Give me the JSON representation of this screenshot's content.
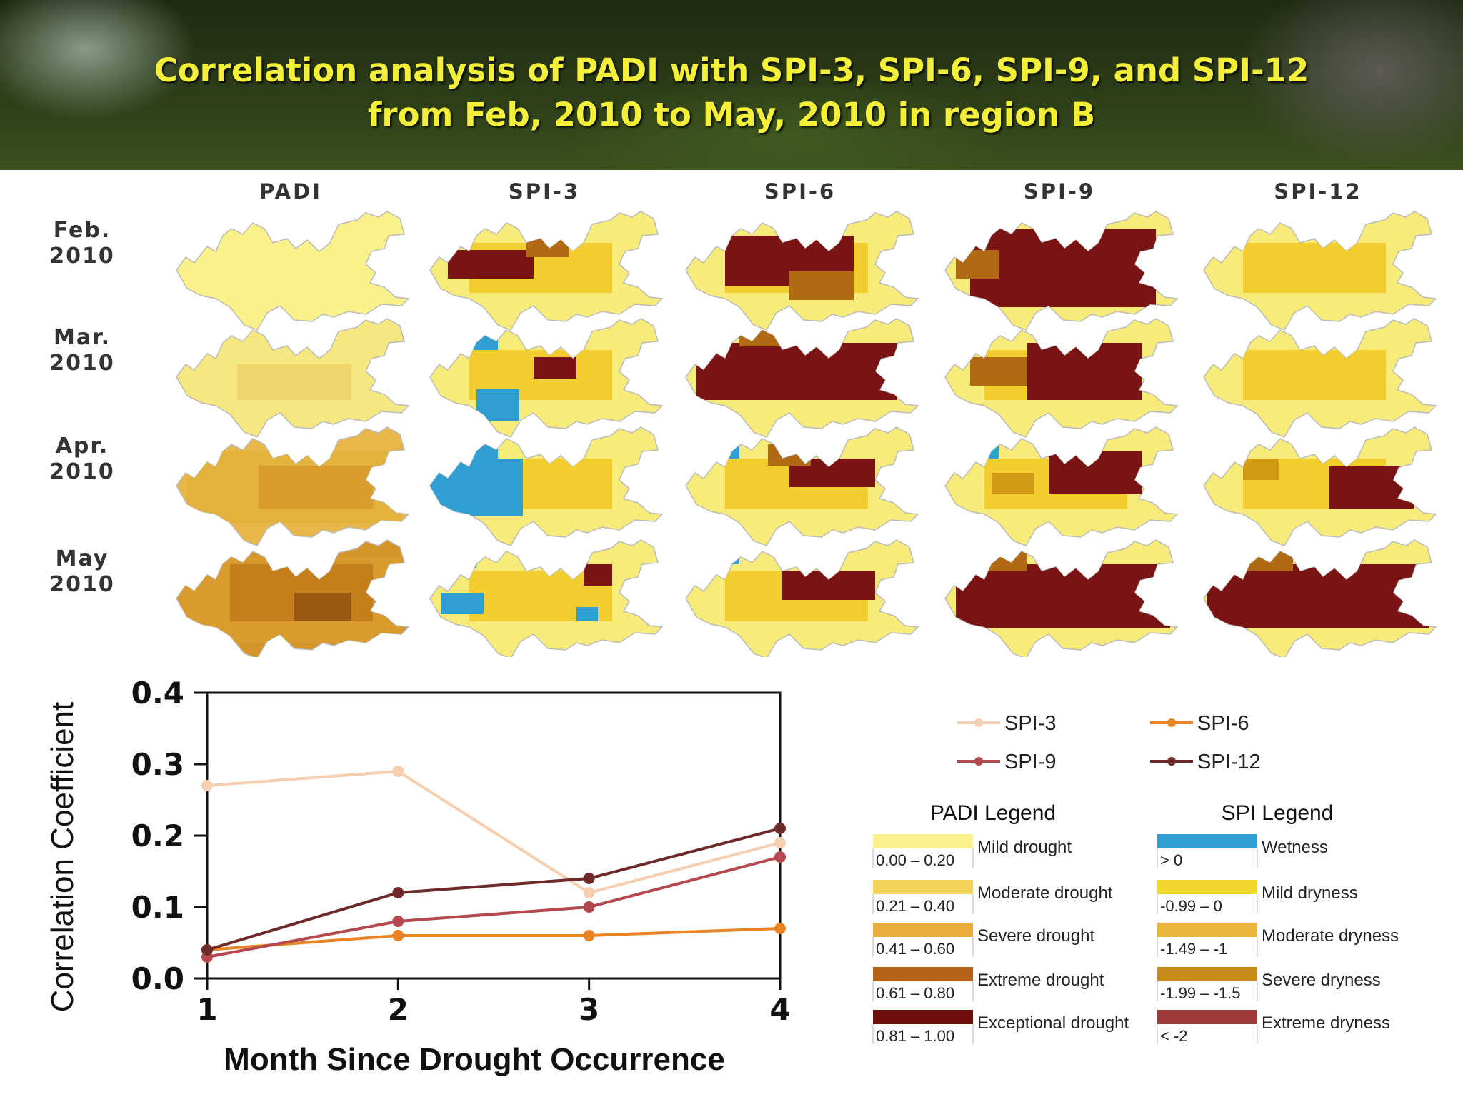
{
  "title": {
    "line1": "Correlation analysis of PADI with SPI-3, SPI-6, SPI-9, and SPI-12",
    "line2": "from Feb, 2010 to May, 2010 in region B"
  },
  "colors": {
    "title": "#f4ef38",
    "wet": "#2f9fd1",
    "mild": "#f7eb7a",
    "moderate": "#f2cd2e",
    "severe": "#d29a12",
    "extreme": "#b06a14",
    "exceptional": "#7a1414",
    "spi3": "#f5cfb0",
    "spi6": "#e98324",
    "spi9": "#b5474f",
    "spi12": "#6e2a2a"
  },
  "maps": {
    "columns": [
      "PADI",
      "SPI-3",
      "SPI-6",
      "SPI-9",
      "SPI-12"
    ],
    "rows": [
      {
        "line1": "Feb.",
        "line2": "2010"
      },
      {
        "line1": "Mar.",
        "line2": "2010"
      },
      {
        "line1": "Apr.",
        "line2": "2010"
      },
      {
        "line1": "May",
        "line2": "2010"
      }
    ]
  },
  "chart_data": {
    "type": "line",
    "x": [
      1,
      2,
      3,
      4
    ],
    "xlabel": "Month Since Drought Occurrence",
    "ylabel": "Correlation Coefficient",
    "xlim": [
      1,
      4
    ],
    "ylim": [
      0.0,
      0.4
    ],
    "yticks": [
      "0.0",
      "0.1",
      "0.2",
      "0.3",
      "0.4"
    ],
    "xticks": [
      "1",
      "2",
      "3",
      "4"
    ],
    "grid": false,
    "legend_position": "top-right",
    "series": [
      {
        "name": "SPI-3",
        "color": "#f5cfb0",
        "values": [
          0.27,
          0.29,
          0.12,
          0.19
        ]
      },
      {
        "name": "SPI-6",
        "color": "#e98324",
        "values": [
          0.04,
          0.06,
          0.06,
          0.07
        ]
      },
      {
        "name": "SPI-9",
        "color": "#b5474f",
        "values": [
          0.03,
          0.08,
          0.1,
          0.17
        ]
      },
      {
        "name": "SPI-12",
        "color": "#6e2a2a",
        "values": [
          0.04,
          0.12,
          0.14,
          0.21
        ]
      }
    ]
  },
  "padi_legend": {
    "title": "PADI Legend",
    "items": [
      {
        "range": "0.00 – 0.20",
        "label": "Mild drought",
        "color": "#f8f08a"
      },
      {
        "range": "0.21 – 0.40",
        "label": "Moderate drought",
        "color": "#f1d35a"
      },
      {
        "range": "0.41 – 0.60",
        "label": "Severe drought",
        "color": "#e9ac3c"
      },
      {
        "range": "0.61 – 0.80",
        "label": "Extreme drought",
        "color": "#b5621a"
      },
      {
        "range": "0.81 – 1.00",
        "label": "Exceptional drought",
        "color": "#6e0e0a"
      }
    ]
  },
  "spi_legend": {
    "title": "SPI Legend",
    "items": [
      {
        "range": "> 0",
        "label": "Wetness",
        "color": "#2f9fd1"
      },
      {
        "range": "-0.99 – 0",
        "label": "Mild dryness",
        "color": "#f2d82e"
      },
      {
        "range": "-1.49 – -1",
        "label": "Moderate dryness",
        "color": "#eab53a"
      },
      {
        "range": "-1.99 – -1.5",
        "label": "Severe dryness",
        "color": "#c98a1c"
      },
      {
        "range": "< -2",
        "label": "Extreme dryness",
        "color": "#a33a3a"
      }
    ]
  }
}
